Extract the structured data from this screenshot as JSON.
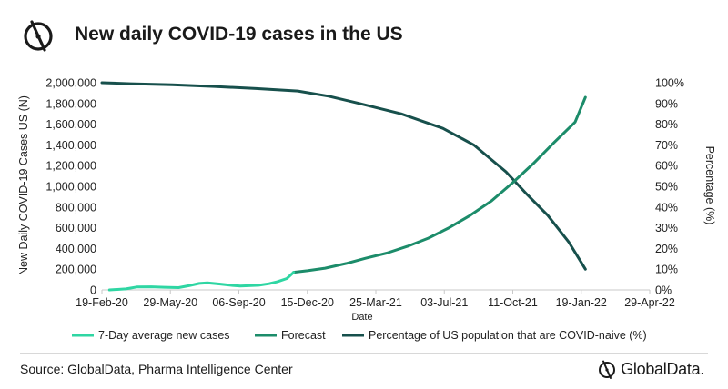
{
  "header": {
    "title": "New daily COVID-19 cases in the US"
  },
  "footer": {
    "source": "Source: GlobalData, Pharma Intelligence Center",
    "brand": "GlobalData."
  },
  "colors": {
    "actual": "#2fd6a3",
    "forecast": "#1c8c6a",
    "naive": "#17504c",
    "axis": "#c8c8c8"
  },
  "chart_data": {
    "type": "line",
    "xlabel": "Date",
    "ylabel": "New Daily COVID-19 Cases US (N)",
    "y2label": "Percentage (%)",
    "x_ticks": [
      "19-Feb-20",
      "29-May-20",
      "06-Sep-20",
      "15-Dec-20",
      "25-Mar-21",
      "03-Jul-21",
      "11-Oct-21",
      "19-Jan-22",
      "29-Apr-22"
    ],
    "ylim": [
      0,
      2000000
    ],
    "y_ticks": [
      "0",
      "200,000",
      "400,000",
      "600,000",
      "800,000",
      "1,000,000",
      "1,200,000",
      "1,400,000",
      "1,600,000",
      "1,800,000",
      "2,000,000"
    ],
    "y2lim": [
      0,
      100
    ],
    "y2_ticks": [
      "0%",
      "10%",
      "20%",
      "30%",
      "40%",
      "50%",
      "60%",
      "70%",
      "80%",
      "90%",
      "100%"
    ],
    "legend_position": "bottom",
    "series": [
      {
        "name": "7-Day average new cases",
        "axis": "left",
        "x": [
          "2020-03-01",
          "2020-03-25",
          "2020-04-10",
          "2020-05-01",
          "2020-05-20",
          "2020-06-10",
          "2020-06-25",
          "2020-07-10",
          "2020-07-22",
          "2020-08-10",
          "2020-08-25",
          "2020-09-08",
          "2020-09-20",
          "2020-10-05",
          "2020-10-20",
          "2020-11-01",
          "2020-11-15",
          "2020-11-25"
        ],
        "y": [
          0,
          10000,
          28000,
          30000,
          25000,
          22000,
          40000,
          62000,
          68000,
          56000,
          45000,
          38000,
          40000,
          45000,
          60000,
          78000,
          110000,
          170000
        ]
      },
      {
        "name": "Forecast",
        "axis": "left",
        "x": [
          "2020-11-25",
          "2020-12-15",
          "2021-01-10",
          "2021-02-10",
          "2021-03-10",
          "2021-04-10",
          "2021-05-10",
          "2021-06-10",
          "2021-07-10",
          "2021-08-10",
          "2021-09-10",
          "2021-10-10",
          "2021-11-10",
          "2021-12-10",
          "2022-01-10",
          "2022-01-25"
        ],
        "y": [
          170000,
          185000,
          210000,
          255000,
          305000,
          355000,
          420000,
          500000,
          600000,
          720000,
          860000,
          1030000,
          1220000,
          1420000,
          1620000,
          1860000
        ]
      },
      {
        "name": "Percentage of US population that are COVID-naive (%)",
        "axis": "right",
        "x": [
          "2020-02-19",
          "2020-04-01",
          "2020-06-01",
          "2020-08-01",
          "2020-10-01",
          "2020-12-01",
          "2021-01-15",
          "2021-03-01",
          "2021-05-01",
          "2021-07-01",
          "2021-08-15",
          "2021-10-01",
          "2021-11-01",
          "2021-12-01",
          "2022-01-01",
          "2022-01-25"
        ],
        "y": [
          100,
          99.5,
          99,
          98.2,
          97.2,
          96,
          93.5,
          90,
          85,
          78,
          70,
          57,
          46,
          36,
          23,
          10
        ]
      }
    ]
  }
}
